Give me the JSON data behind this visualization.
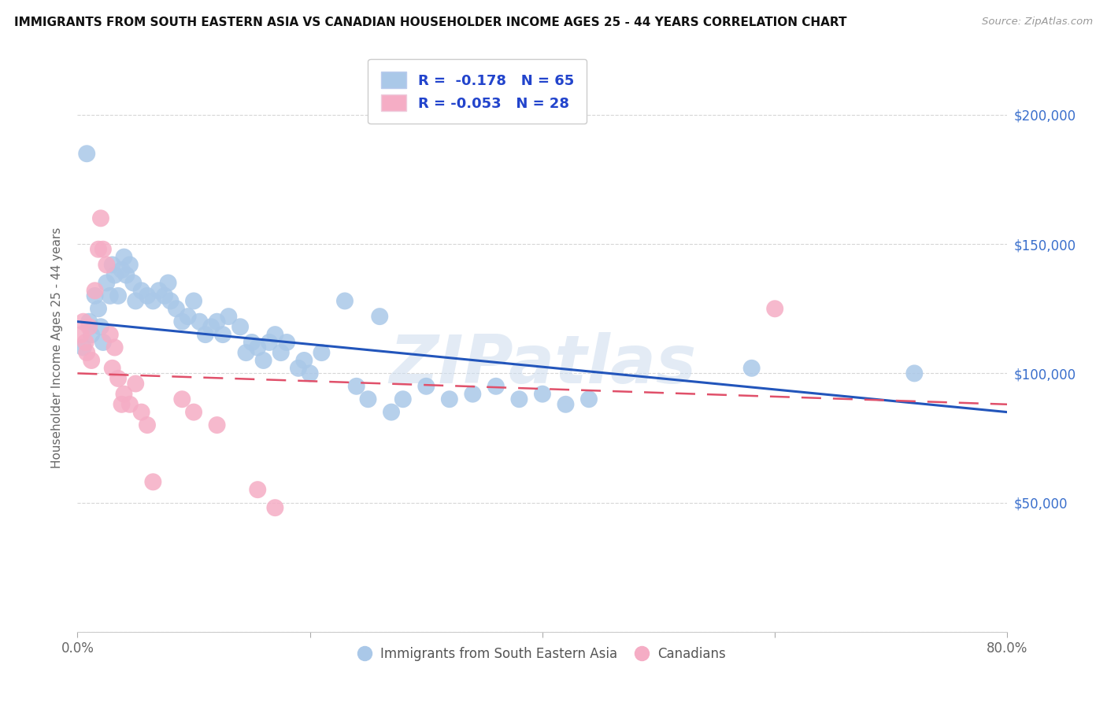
{
  "title": "IMMIGRANTS FROM SOUTH EASTERN ASIA VS CANADIAN HOUSEHOLDER INCOME AGES 25 - 44 YEARS CORRELATION CHART",
  "source": "Source: ZipAtlas.com",
  "ylabel": "Householder Income Ages 25 - 44 years",
  "xlim": [
    0.0,
    0.8
  ],
  "ylim": [
    0,
    220000
  ],
  "yticks": [
    0,
    50000,
    100000,
    150000,
    200000
  ],
  "ytick_labels": [
    "",
    "$50,000",
    "$100,000",
    "$150,000",
    "$200,000"
  ],
  "xticks": [
    0.0,
    0.2,
    0.4,
    0.6,
    0.8
  ],
  "xtick_labels": [
    "0.0%",
    "",
    "",
    "",
    "80.0%"
  ],
  "legend_line1": "R =  -0.178   N = 65",
  "legend_line2": "R = -0.053   N = 28",
  "legend_label_blue": "Immigrants from South Eastern Asia",
  "legend_label_pink": "Canadians",
  "watermark": "ZIPatlas",
  "blue_color": "#aac8e8",
  "pink_color": "#f5adc5",
  "line_blue_color": "#2255bb",
  "line_pink_color": "#e0506a",
  "blue_scatter_x": [
    0.005,
    0.008,
    0.01,
    0.012,
    0.015,
    0.018,
    0.02,
    0.022,
    0.025,
    0.028,
    0.03,
    0.032,
    0.035,
    0.038,
    0.04,
    0.042,
    0.045,
    0.048,
    0.05,
    0.055,
    0.06,
    0.065,
    0.07,
    0.075,
    0.08,
    0.085,
    0.09,
    0.095,
    0.1,
    0.105,
    0.11,
    0.115,
    0.12,
    0.125,
    0.13,
    0.14,
    0.145,
    0.15,
    0.155,
    0.16,
    0.165,
    0.17,
    0.175,
    0.18,
    0.19,
    0.195,
    0.2,
    0.21,
    0.23,
    0.24,
    0.25,
    0.26,
    0.27,
    0.28,
    0.3,
    0.32,
    0.34,
    0.36,
    0.38,
    0.4,
    0.42,
    0.44,
    0.58,
    0.72,
    0.078
  ],
  "blue_scatter_y": [
    110000,
    185000,
    120000,
    115000,
    130000,
    125000,
    118000,
    112000,
    135000,
    130000,
    142000,
    138000,
    130000,
    140000,
    145000,
    138000,
    142000,
    135000,
    128000,
    132000,
    130000,
    128000,
    132000,
    130000,
    128000,
    125000,
    120000,
    122000,
    128000,
    120000,
    115000,
    118000,
    120000,
    115000,
    122000,
    118000,
    108000,
    112000,
    110000,
    105000,
    112000,
    115000,
    108000,
    112000,
    102000,
    105000,
    100000,
    108000,
    128000,
    95000,
    90000,
    122000,
    85000,
    90000,
    95000,
    90000,
    92000,
    95000,
    90000,
    92000,
    88000,
    90000,
    102000,
    100000,
    135000
  ],
  "pink_scatter_x": [
    0.003,
    0.005,
    0.007,
    0.008,
    0.01,
    0.012,
    0.015,
    0.018,
    0.02,
    0.022,
    0.025,
    0.028,
    0.03,
    0.032,
    0.035,
    0.038,
    0.04,
    0.045,
    0.05,
    0.055,
    0.06,
    0.065,
    0.09,
    0.1,
    0.12,
    0.155,
    0.17,
    0.6
  ],
  "pink_scatter_y": [
    115000,
    120000,
    112000,
    108000,
    118000,
    105000,
    132000,
    148000,
    160000,
    148000,
    142000,
    115000,
    102000,
    110000,
    98000,
    88000,
    92000,
    88000,
    96000,
    85000,
    80000,
    58000,
    90000,
    85000,
    80000,
    55000,
    48000,
    125000
  ],
  "blue_line_x": [
    0.0,
    0.8
  ],
  "blue_line_y": [
    120000,
    85000
  ],
  "pink_line_x": [
    0.0,
    0.8
  ],
  "pink_line_y": [
    100000,
    88000
  ]
}
